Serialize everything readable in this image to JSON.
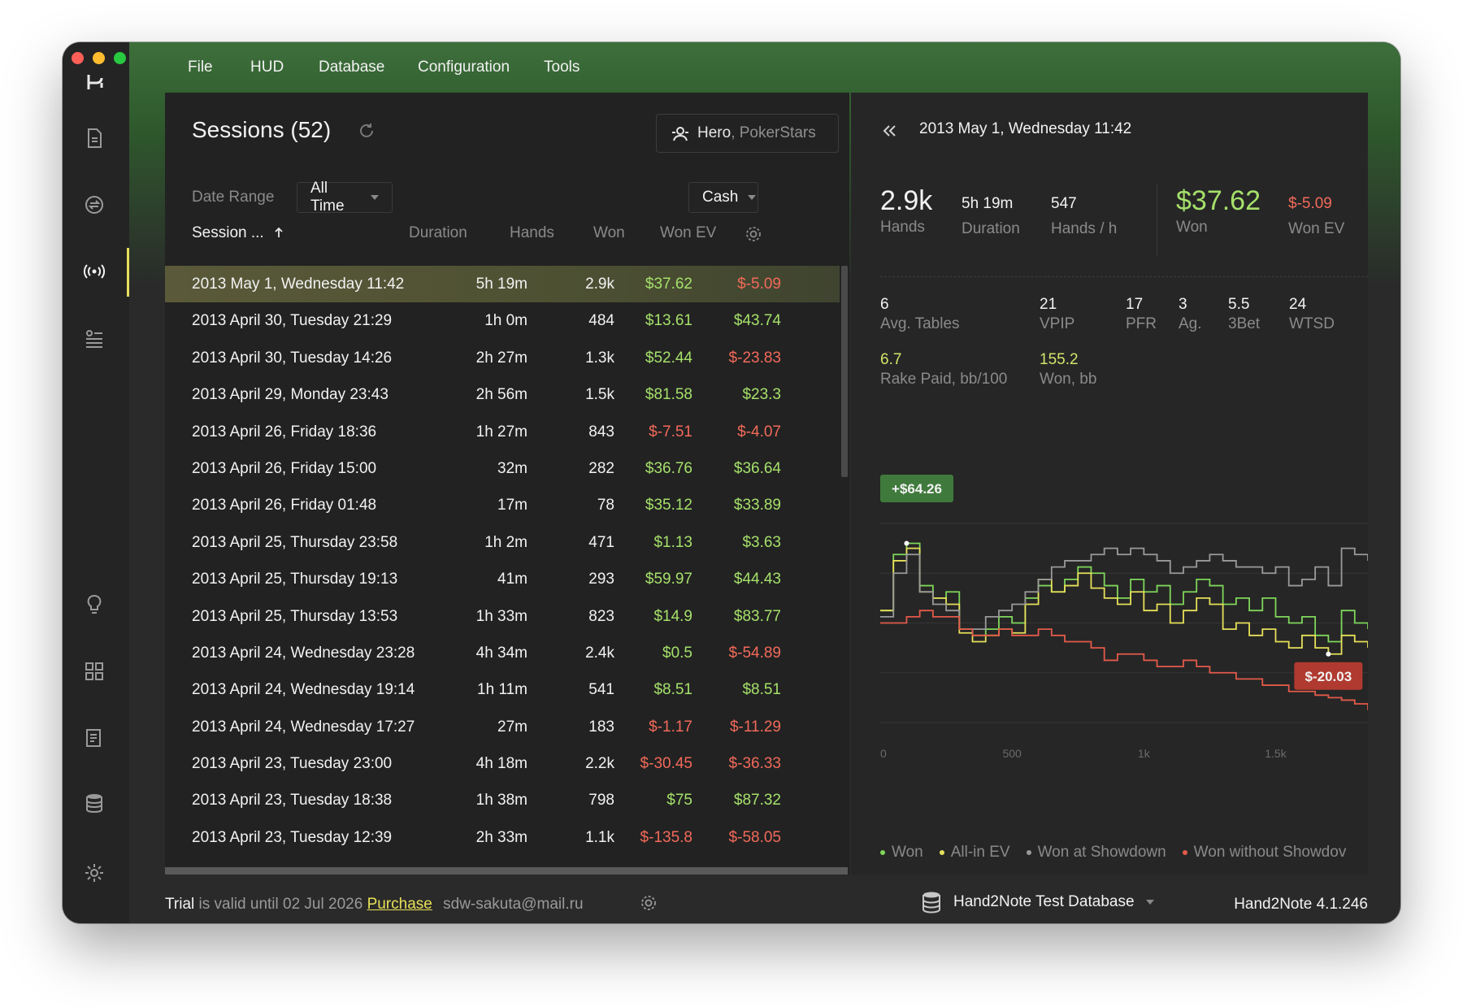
{
  "menu": [
    "File",
    "HUD",
    "Database",
    "Configuration",
    "Tools"
  ],
  "sidebar_icons": [
    "document-icon",
    "replayer-icon",
    "live-icon",
    "report-icon",
    "lightbulb-icon",
    "grid-icon",
    "notes-icon",
    "database-icon",
    "settings-icon"
  ],
  "sessions": {
    "title": "Sessions (52)",
    "hero_name": "Hero",
    "hero_site": "PokerStars",
    "date_range_label": "Date Range",
    "date_range_value": "All Time",
    "game_type": "Cash",
    "columns": {
      "session": "Session ...",
      "duration": "Duration",
      "hands": "Hands",
      "won": "Won",
      "won_ev": "Won EV"
    },
    "rows": [
      {
        "session": "2013 May 1, Wednesday 11:42",
        "duration": "5h 19m",
        "hands": "2.9k",
        "won": "$37.62",
        "won_ev": "$-5.09",
        "won_sign": "pos",
        "ev_sign": "neg"
      },
      {
        "session": "2013 April 30, Tuesday 21:29",
        "duration": "1h 0m",
        "hands": "484",
        "won": "$13.61",
        "won_ev": "$43.74",
        "won_sign": "pos",
        "ev_sign": "pos"
      },
      {
        "session": "2013 April 30, Tuesday 14:26",
        "duration": "2h 27m",
        "hands": "1.3k",
        "won": "$52.44",
        "won_ev": "$-23.83",
        "won_sign": "pos",
        "ev_sign": "neg"
      },
      {
        "session": "2013 April 29, Monday 23:43",
        "duration": "2h 56m",
        "hands": "1.5k",
        "won": "$81.58",
        "won_ev": "$23.3",
        "won_sign": "pos",
        "ev_sign": "pos"
      },
      {
        "session": "2013 April 26, Friday 18:36",
        "duration": "1h 27m",
        "hands": "843",
        "won": "$-7.51",
        "won_ev": "$-4.07",
        "won_sign": "neg",
        "ev_sign": "neg"
      },
      {
        "session": "2013 April 26, Friday 15:00",
        "duration": "32m",
        "hands": "282",
        "won": "$36.76",
        "won_ev": "$36.64",
        "won_sign": "pos",
        "ev_sign": "pos"
      },
      {
        "session": "2013 April 26, Friday 01:48",
        "duration": "17m",
        "hands": "78",
        "won": "$35.12",
        "won_ev": "$33.89",
        "won_sign": "pos",
        "ev_sign": "pos"
      },
      {
        "session": "2013 April 25, Thursday 23:58",
        "duration": "1h 2m",
        "hands": "471",
        "won": "$1.13",
        "won_ev": "$3.63",
        "won_sign": "pos",
        "ev_sign": "pos"
      },
      {
        "session": "2013 April 25, Thursday 19:13",
        "duration": "41m",
        "hands": "293",
        "won": "$59.97",
        "won_ev": "$44.43",
        "won_sign": "pos",
        "ev_sign": "pos"
      },
      {
        "session": "2013 April 25, Thursday 13:53",
        "duration": "1h 33m",
        "hands": "823",
        "won": "$14.9",
        "won_ev": "$83.77",
        "won_sign": "pos",
        "ev_sign": "pos"
      },
      {
        "session": "2013 April 24, Wednesday 23:28",
        "duration": "4h 34m",
        "hands": "2.4k",
        "won": "$0.5",
        "won_ev": "$-54.89",
        "won_sign": "pos",
        "ev_sign": "neg"
      },
      {
        "session": "2013 April 24, Wednesday 19:14",
        "duration": "1h 11m",
        "hands": "541",
        "won": "$8.51",
        "won_ev": "$8.51",
        "won_sign": "pos",
        "ev_sign": "pos"
      },
      {
        "session": "2013 April 24, Wednesday 17:27",
        "duration": "27m",
        "hands": "183",
        "won": "$-1.17",
        "won_ev": "$-11.29",
        "won_sign": "neg",
        "ev_sign": "neg"
      },
      {
        "session": "2013 April 23, Tuesday 23:00",
        "duration": "4h 18m",
        "hands": "2.2k",
        "won": "$-30.45",
        "won_ev": "$-36.33",
        "won_sign": "neg",
        "ev_sign": "neg"
      },
      {
        "session": "2013 April 23, Tuesday 18:38",
        "duration": "1h 38m",
        "hands": "798",
        "won": "$75",
        "won_ev": "$87.32",
        "won_sign": "pos",
        "ev_sign": "pos"
      },
      {
        "session": "2013 April 23, Tuesday 12:39",
        "duration": "2h 33m",
        "hands": "1.1k",
        "won": "$-135.8",
        "won_ev": "$-58.05",
        "won_sign": "neg",
        "ev_sign": "neg"
      }
    ]
  },
  "detail": {
    "title": "2013 May 1, Wednesday 11:42",
    "hands": "2.9k",
    "hands_label": "Hands",
    "duration": "5h 19m",
    "duration_label": "Duration",
    "hands_per_hour": "547",
    "hands_per_hour_label": "Hands / h",
    "won": "$37.62",
    "won_label": "Won",
    "won_ev": "$-5.09",
    "won_ev_label": "Won EV",
    "stats": [
      {
        "value": "6",
        "label": "Avg. Tables"
      },
      {
        "value": "21",
        "label": "VPIP"
      },
      {
        "value": "17",
        "label": "PFR"
      },
      {
        "value": "3",
        "label": "Ag."
      },
      {
        "value": "5.5",
        "label": "3Bet"
      },
      {
        "value": "24",
        "label": "WTSD"
      },
      {
        "value": "6.7",
        "label": "Rake Paid, bb/100"
      },
      {
        "value": "155.2",
        "label": "Won, bb"
      }
    ]
  },
  "chart_data": {
    "type": "line",
    "x_ticks": [
      "0",
      "500",
      "1k",
      "1.5k"
    ],
    "annotations": [
      {
        "text": "+$64.26"
      },
      {
        "text": "$-20.03"
      }
    ],
    "series": [
      {
        "name": "Won",
        "color": "#7fd65a",
        "x": [
          0,
          50,
          100,
          150,
          200,
          250,
          300,
          350,
          400,
          450,
          500,
          550,
          600,
          650,
          700,
          750,
          800,
          850,
          900,
          950,
          1000,
          1050,
          1100,
          1150,
          1200,
          1250,
          1300,
          1350,
          1400,
          1450,
          1500,
          1550,
          1600,
          1650,
          1700,
          1750,
          1800,
          1850
        ],
        "values": [
          10,
          55,
          64,
          30,
          20,
          25,
          -5,
          -10,
          -5,
          5,
          0,
          20,
          30,
          25,
          35,
          45,
          40,
          30,
          20,
          35,
          25,
          30,
          15,
          25,
          35,
          30,
          15,
          20,
          10,
          20,
          5,
          0,
          5,
          -10,
          -15,
          10,
          0,
          -5
        ]
      },
      {
        "name": "All-in EV",
        "color": "#e6e05a",
        "x": [
          0,
          50,
          100,
          150,
          200,
          250,
          300,
          350,
          400,
          450,
          500,
          550,
          600,
          650,
          700,
          750,
          800,
          850,
          900,
          950,
          1000,
          1050,
          1100,
          1150,
          1200,
          1250,
          1300,
          1350,
          1400,
          1450,
          1500,
          1550,
          1600,
          1650,
          1700,
          1750,
          1800,
          1850
        ],
        "values": [
          10,
          50,
          60,
          25,
          20,
          15,
          -8,
          -15,
          -10,
          -5,
          -8,
          15,
          35,
          25,
          30,
          40,
          28,
          20,
          15,
          25,
          10,
          15,
          0,
          10,
          20,
          15,
          -5,
          0,
          -10,
          -5,
          -15,
          -20,
          -10,
          -20,
          -25,
          -10,
          -15,
          -20
        ]
      },
      {
        "name": "Won at Showdown",
        "color": "#9a9a9a",
        "x": [
          0,
          50,
          100,
          150,
          200,
          250,
          300,
          350,
          400,
          450,
          500,
          550,
          600,
          650,
          700,
          750,
          800,
          850,
          900,
          950,
          1000,
          1050,
          1100,
          1150,
          1200,
          1250,
          1300,
          1350,
          1400,
          1450,
          1500,
          1550,
          1600,
          1650,
          1700,
          1750,
          1800,
          1850
        ],
        "values": [
          5,
          40,
          55,
          25,
          15,
          10,
          -5,
          -5,
          5,
          10,
          15,
          25,
          35,
          45,
          50,
          50,
          55,
          60,
          55,
          60,
          55,
          50,
          40,
          45,
          50,
          55,
          50,
          45,
          45,
          40,
          45,
          30,
          35,
          45,
          30,
          60,
          55,
          50
        ]
      },
      {
        "name": "Won without Showdown",
        "color": "#e25a4a",
        "x": [
          0,
          50,
          100,
          150,
          200,
          250,
          300,
          350,
          400,
          450,
          500,
          550,
          600,
          650,
          700,
          750,
          800,
          850,
          900,
          950,
          1000,
          1050,
          1100,
          1150,
          1200,
          1250,
          1300,
          1350,
          1400,
          1450,
          1500,
          1550,
          1600,
          1650,
          1700,
          1750,
          1800,
          1850
        ],
        "values": [
          0,
          0,
          5,
          10,
          5,
          5,
          -5,
          -10,
          -10,
          -5,
          -10,
          -10,
          -5,
          -10,
          -15,
          -15,
          -20,
          -30,
          -25,
          -25,
          -30,
          -35,
          -35,
          -30,
          -35,
          -40,
          -40,
          -45,
          -45,
          -50,
          -50,
          -55,
          -55,
          -58,
          -60,
          -62,
          -65,
          -70
        ]
      }
    ]
  },
  "legend": [
    "Won",
    "All-in EV",
    "Won at Showdown",
    "Won without Showdov"
  ],
  "status": {
    "trial": "Trial",
    "valid_until": "is valid until 02 Jul 2026",
    "purchase": "Purchase",
    "email": "sdw-sakuta@mail.ru",
    "database": "Hand2Note Test Database",
    "version": "Hand2Note 4.1.246"
  }
}
